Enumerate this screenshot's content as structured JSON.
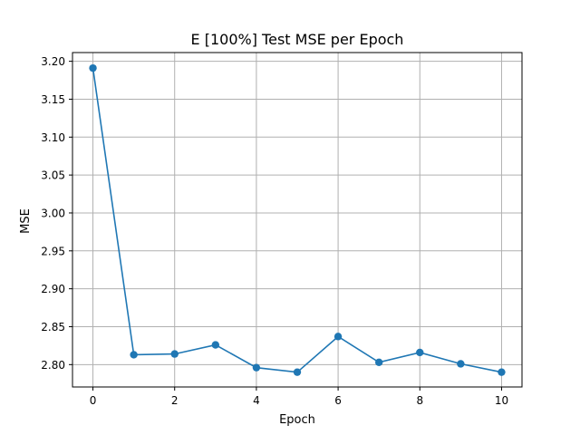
{
  "chart_data": {
    "type": "line",
    "title": "E [100%] Test MSE per Epoch",
    "xlabel": "Epoch",
    "ylabel": "MSE",
    "xlim": [
      -0.5,
      10.5
    ],
    "ylim": [
      2.7705,
      3.2115
    ],
    "xticks": [
      0,
      2,
      4,
      6,
      8,
      10
    ],
    "yticks": [
      2.8,
      2.85,
      2.9,
      2.95,
      3.0,
      3.05,
      3.1,
      3.15,
      3.2
    ],
    "grid": true,
    "series": [
      {
        "color": "#1f77b4",
        "marker": "circle",
        "x": [
          0,
          1,
          2,
          3,
          4,
          5,
          6,
          7,
          8,
          9,
          10
        ],
        "y": [
          3.191,
          2.813,
          2.814,
          2.826,
          2.796,
          2.79,
          2.837,
          2.803,
          2.816,
          2.801,
          2.79
        ]
      }
    ]
  }
}
